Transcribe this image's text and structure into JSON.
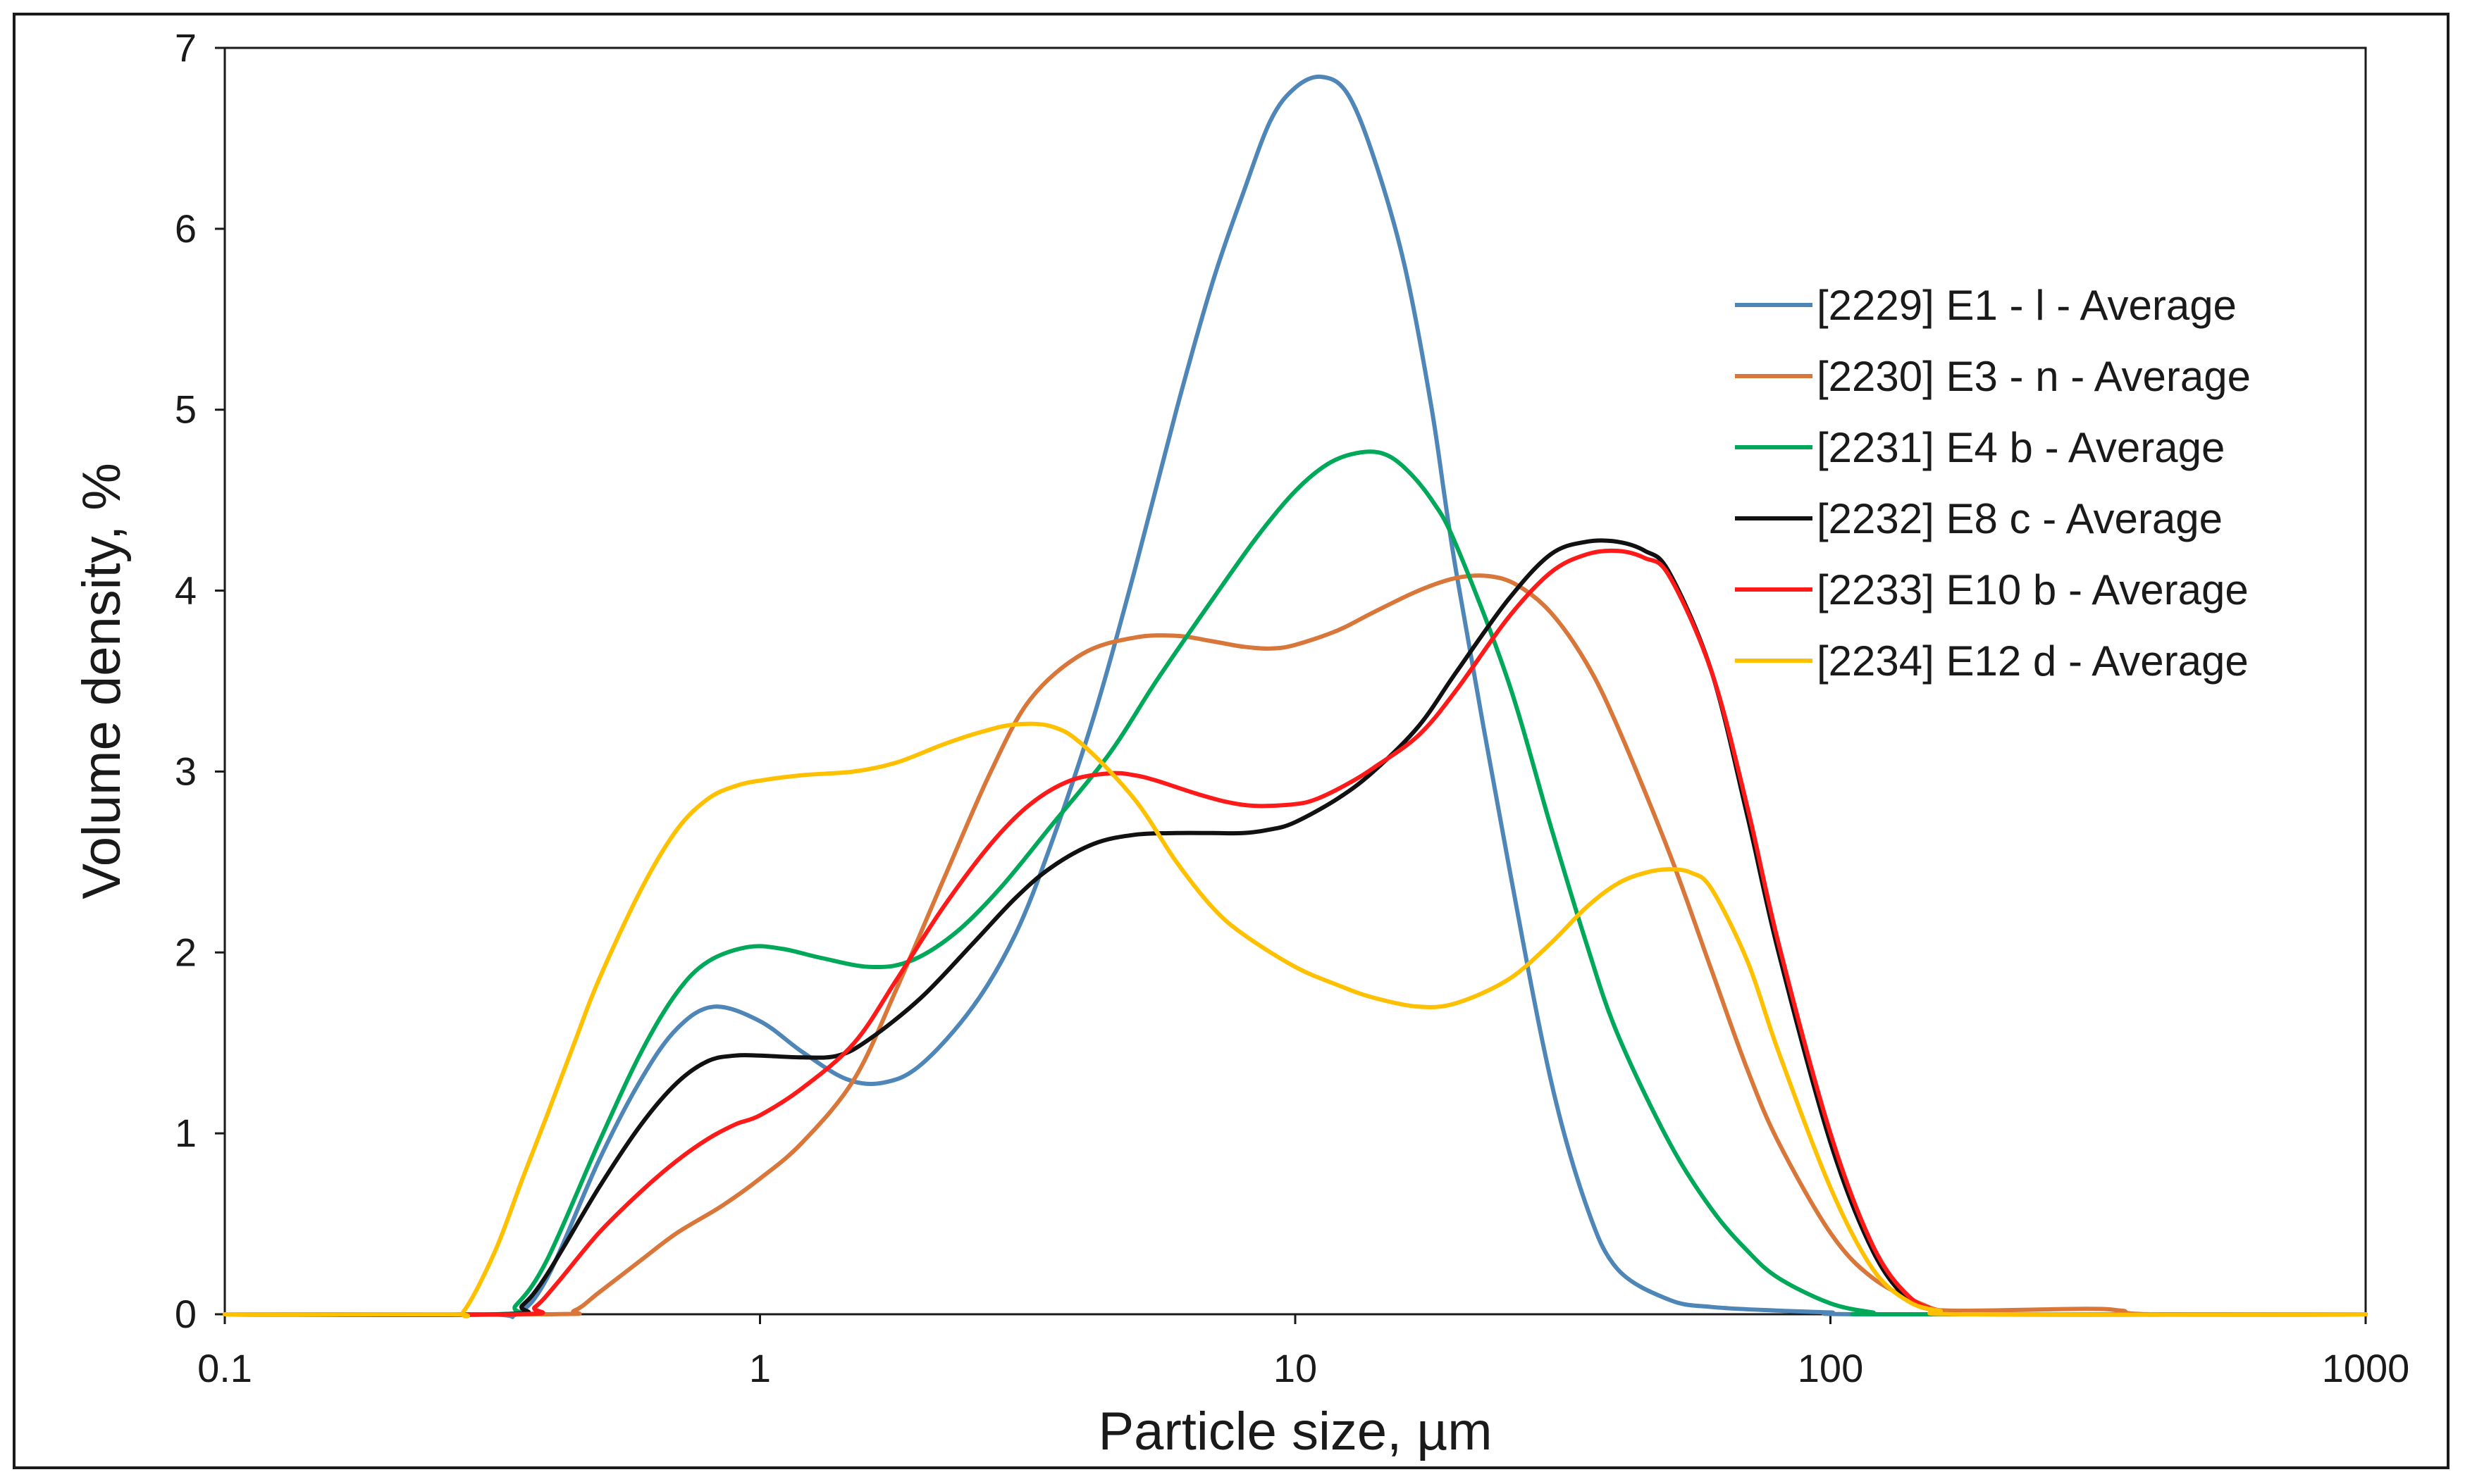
{
  "chart_data": {
    "type": "line",
    "title": "",
    "xlabel": "Particle size, µm",
    "ylabel": "Volume density, %",
    "xscale": "log",
    "xlim": [
      0.1,
      1000
    ],
    "ylim": [
      0,
      7
    ],
    "xticks": [
      0.1,
      1,
      10,
      100,
      1000
    ],
    "xtick_labels": [
      "0.1",
      "1",
      "10",
      "100",
      "1000"
    ],
    "yticks": [
      0,
      1,
      2,
      3,
      4,
      5,
      6,
      7
    ],
    "ytick_labels": [
      "0",
      "1",
      "2",
      "3",
      "4",
      "5",
      "6",
      "7"
    ],
    "grid": false,
    "legend_position": "top-right",
    "series": [
      {
        "name": "[2229] E1 - l - Average",
        "color": "#4f86b8",
        "x": [
          0.1,
          0.3,
          0.35,
          0.4,
          0.5,
          0.6,
          0.7,
          0.82,
          1.0,
          1.2,
          1.45,
          1.7,
          2.0,
          2.5,
          3.0,
          3.5,
          4.2,
          5.0,
          6.0,
          7.0,
          8.0,
          9.0,
          10.0,
          11.2,
          12.5,
          14.0,
          16.0,
          18.0,
          20.0,
          25.0,
          30.0,
          35.0,
          40.0,
          50.0,
          60.0,
          80.0,
          100.0,
          120.0,
          1000.0
        ],
        "y": [
          0,
          0,
          0,
          0.2,
          0.85,
          1.3,
          1.58,
          1.7,
          1.62,
          1.45,
          1.3,
          1.28,
          1.38,
          1.7,
          2.1,
          2.6,
          3.3,
          4.1,
          5.0,
          5.7,
          6.2,
          6.6,
          6.78,
          6.84,
          6.75,
          6.4,
          5.8,
          5.0,
          4.1,
          2.5,
          1.3,
          0.6,
          0.25,
          0.08,
          0.04,
          0.02,
          0.01,
          0,
          0
        ]
      },
      {
        "name": "[2230] E3 - n - Average",
        "color": "#d9773a",
        "x": [
          0.1,
          0.4,
          0.45,
          0.5,
          0.6,
          0.7,
          0.85,
          1.0,
          1.2,
          1.5,
          1.8,
          2.2,
          2.7,
          3.2,
          4.0,
          5.0,
          6.0,
          7.0,
          8.0,
          9.0,
          10.0,
          12.0,
          14.0,
          17.0,
          20.0,
          23.0,
          26.0,
          30.0,
          35.0,
          40.0,
          50.0,
          60.0,
          70.0,
          80.0,
          100.0,
          120.0,
          150.0,
          170.0,
          300.0,
          350.0,
          400.0,
          1000.0
        ],
        "y": [
          0,
          0,
          0.02,
          0.12,
          0.3,
          0.45,
          0.6,
          0.75,
          0.95,
          1.3,
          1.8,
          2.4,
          3.0,
          3.4,
          3.65,
          3.74,
          3.75,
          3.72,
          3.69,
          3.68,
          3.7,
          3.78,
          3.88,
          4.0,
          4.07,
          4.08,
          4.03,
          3.88,
          3.6,
          3.25,
          2.55,
          1.9,
          1.35,
          0.95,
          0.45,
          0.2,
          0.05,
          0.02,
          0.03,
          0.02,
          0,
          0
        ]
      },
      {
        "name": "[2231] E4 b - Average",
        "color": "#00a85a",
        "x": [
          0.1,
          0.32,
          0.35,
          0.4,
          0.5,
          0.6,
          0.7,
          0.8,
          0.95,
          1.1,
          1.3,
          1.6,
          1.9,
          2.3,
          2.8,
          3.5,
          4.5,
          5.5,
          7.0,
          8.5,
          10.0,
          11.5,
          13.0,
          14.5,
          16.0,
          18.0,
          20.0,
          25.0,
          30.0,
          35.0,
          40.0,
          50.0,
          60.0,
          70.0,
          80.0,
          100.0,
          120.0,
          130.0,
          1000.0
        ],
        "y": [
          0,
          0,
          0.05,
          0.3,
          0.95,
          1.45,
          1.78,
          1.95,
          2.03,
          2.02,
          1.97,
          1.92,
          1.95,
          2.1,
          2.35,
          2.7,
          3.1,
          3.5,
          3.95,
          4.3,
          4.55,
          4.7,
          4.76,
          4.76,
          4.68,
          4.5,
          4.25,
          3.5,
          2.7,
          2.05,
          1.55,
          0.95,
          0.58,
          0.35,
          0.2,
          0.06,
          0.01,
          0,
          0
        ]
      },
      {
        "name": "[2232] E8 c - Average",
        "color": "#111111",
        "x": [
          0.1,
          0.33,
          0.36,
          0.4,
          0.5,
          0.6,
          0.7,
          0.8,
          0.9,
          1.0,
          1.2,
          1.4,
          1.6,
          2.0,
          2.5,
          3.0,
          3.5,
          4.2,
          5.0,
          6.0,
          7.0,
          8.0,
          9.0,
          10.0,
          12.0,
          14.0,
          17.0,
          20.0,
          25.0,
          30.0,
          35.0,
          40.0,
          45.0,
          50.0,
          60.0,
          70.0,
          80.0,
          100.0,
          120.0,
          140.0,
          160.0,
          180.0,
          1000.0
        ],
        "y": [
          0,
          0,
          0.05,
          0.22,
          0.7,
          1.05,
          1.28,
          1.4,
          1.43,
          1.43,
          1.42,
          1.43,
          1.52,
          1.75,
          2.05,
          2.3,
          2.47,
          2.6,
          2.65,
          2.66,
          2.66,
          2.66,
          2.68,
          2.72,
          2.85,
          3.0,
          3.25,
          3.55,
          3.95,
          4.2,
          4.27,
          4.27,
          4.22,
          4.1,
          3.55,
          2.75,
          2.0,
          0.95,
          0.35,
          0.08,
          0.02,
          0,
          0
        ]
      },
      {
        "name": "[2233] E10 b - Average",
        "color": "#ff1a1a",
        "x": [
          0.1,
          0.35,
          0.38,
          0.42,
          0.5,
          0.6,
          0.7,
          0.8,
          0.9,
          1.0,
          1.2,
          1.5,
          1.8,
          2.2,
          2.7,
          3.2,
          3.8,
          4.5,
          5.0,
          5.5,
          6.5,
          7.5,
          8.5,
          10.0,
          11.0,
          12.5,
          14.0,
          17.0,
          20.0,
          25.0,
          30.0,
          35.0,
          40.0,
          45.0,
          50.0,
          60.0,
          70.0,
          80.0,
          100.0,
          120.0,
          140.0,
          160.0,
          180.0,
          1000.0
        ],
        "y": [
          0,
          0,
          0.04,
          0.18,
          0.45,
          0.68,
          0.85,
          0.97,
          1.05,
          1.1,
          1.25,
          1.5,
          1.85,
          2.25,
          2.6,
          2.82,
          2.95,
          2.99,
          2.98,
          2.95,
          2.88,
          2.83,
          2.81,
          2.82,
          2.85,
          2.93,
          3.02,
          3.2,
          3.45,
          3.85,
          4.1,
          4.2,
          4.22,
          4.18,
          4.08,
          3.55,
          2.8,
          2.05,
          1.0,
          0.38,
          0.1,
          0.02,
          0,
          0
        ]
      },
      {
        "name": "[2234] E12 d - Average",
        "color": "#ffc000",
        "x": [
          0.1,
          0.26,
          0.28,
          0.32,
          0.36,
          0.4,
          0.45,
          0.5,
          0.6,
          0.7,
          0.8,
          0.9,
          1.0,
          1.2,
          1.5,
          1.8,
          2.2,
          2.6,
          3.0,
          3.5,
          4.0,
          5.0,
          6.0,
          7.0,
          8.0,
          10.0,
          12.0,
          14.0,
          17.0,
          20.0,
          25.0,
          30.0,
          35.0,
          40.0,
          45.0,
          50.0,
          55.0,
          60.0,
          70.0,
          80.0,
          100.0,
          120.0,
          140.0,
          160.0,
          180.0,
          1000.0
        ],
        "y": [
          0,
          0,
          0.02,
          0.35,
          0.75,
          1.1,
          1.5,
          1.85,
          2.35,
          2.68,
          2.85,
          2.92,
          2.95,
          2.98,
          3.0,
          3.05,
          3.15,
          3.22,
          3.26,
          3.25,
          3.15,
          2.85,
          2.5,
          2.25,
          2.1,
          1.92,
          1.82,
          1.75,
          1.7,
          1.72,
          1.85,
          2.05,
          2.25,
          2.38,
          2.44,
          2.46,
          2.44,
          2.35,
          1.95,
          1.45,
          0.7,
          0.25,
          0.07,
          0.02,
          0,
          0
        ]
      }
    ]
  }
}
